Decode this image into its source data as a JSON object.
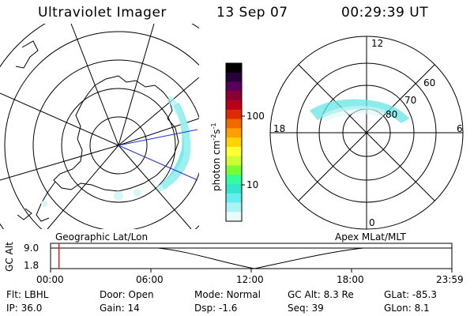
{
  "header": {
    "title": "Ultraviolet Imager",
    "date": "13 Sep 07",
    "time": "00:29:39 UT"
  },
  "left_map": {
    "label": "Geographic Lat/Lon"
  },
  "right_map": {
    "label": "Apex MLat/MLT",
    "lat_labels": [
      "80",
      "70",
      "60"
    ],
    "mlt_labels": {
      "top": "12",
      "left": "18",
      "right": "6",
      "bottom": "0"
    }
  },
  "colorbar": {
    "unit": "photon cm",
    "unit_exp1": "-2",
    "unit_mid": "s",
    "unit_exp2": "-1",
    "ticks": [
      "100",
      "10"
    ],
    "colors": [
      "#000000",
      "#2a003c",
      "#5a005a",
      "#8a0033",
      "#b8001a",
      "#dd2a00",
      "#f06a00",
      "#ffa000",
      "#ffd400",
      "#ffff33",
      "#ccff33",
      "#77ff33",
      "#33ff99",
      "#33e6cc",
      "#66eeee",
      "#aaf4f4",
      "#e8fafa"
    ]
  },
  "timeline": {
    "y_axis_label": "GC Alt",
    "y_ticks": [
      "9.0",
      "1.8"
    ],
    "x_ticks": [
      "00:00",
      "06:00",
      "12:00",
      "18:00",
      "23:59"
    ],
    "marker_fraction": 0.021
  },
  "footer": {
    "row1": [
      {
        "label": "Flt:",
        "value": "LBHL"
      },
      {
        "label": "Door:",
        "value": "Open"
      },
      {
        "label": "Mode:",
        "value": "Normal"
      },
      {
        "label": "GC Alt:",
        "value": "8.3 Re"
      },
      {
        "label": "GLat:",
        "value": "-85.3"
      }
    ],
    "row2": [
      {
        "label": "IP:",
        "value": "36.0"
      },
      {
        "label": "Gain:",
        "value": "14"
      },
      {
        "label": "Dsp:",
        "value": "-1.6"
      },
      {
        "label": "Seq:",
        "value": "39"
      },
      {
        "label": "GLon:",
        "value": "8.1"
      }
    ]
  }
}
